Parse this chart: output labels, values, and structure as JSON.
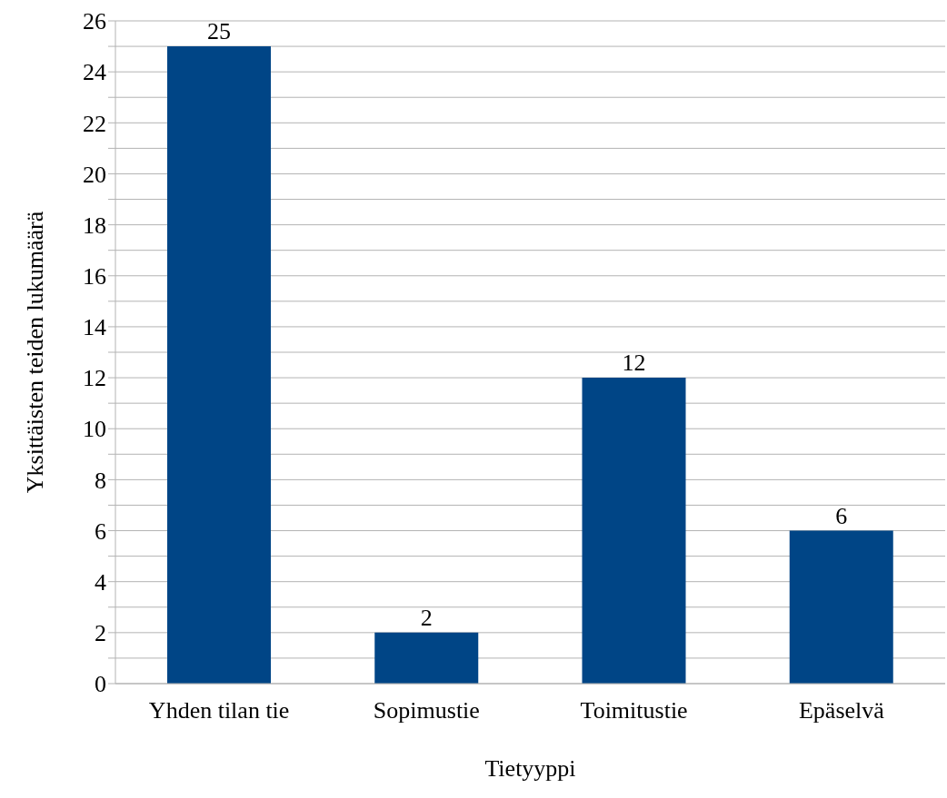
{
  "chart_data": {
    "type": "bar",
    "xlabel": "Tietyyppi",
    "ylabel": "Yksittäisten teiden lukumäärä",
    "categories": [
      "Yhden tilan tie",
      "Sopimustie",
      "Toimitustie",
      "Epäselvä"
    ],
    "values": [
      25,
      2,
      12,
      6
    ],
    "color": "#004586",
    "ylim": [
      0,
      26
    ],
    "yticks": [
      0,
      {
        "value": 1,
        "label": null
      },
      2,
      {
        "value": 3,
        "label": null
      },
      4,
      {
        "value": 5,
        "label": null
      },
      6,
      {
        "value": 7,
        "label": null
      },
      8,
      {
        "value": 9,
        "label": null
      },
      10,
      {
        "value": 11,
        "label": null
      },
      12,
      {
        "value": 13,
        "label": null
      },
      14,
      {
        "value": 15,
        "label": null
      },
      16,
      {
        "value": 17,
        "label": null
      },
      18,
      {
        "value": 19,
        "label": null
      },
      20,
      {
        "value": 21,
        "label": null
      },
      22,
      {
        "value": 23,
        "label": null
      },
      24,
      {
        "value": 25,
        "label": null
      },
      26
    ],
    "grid": "y",
    "data_labels": true,
    "legend": false
  }
}
